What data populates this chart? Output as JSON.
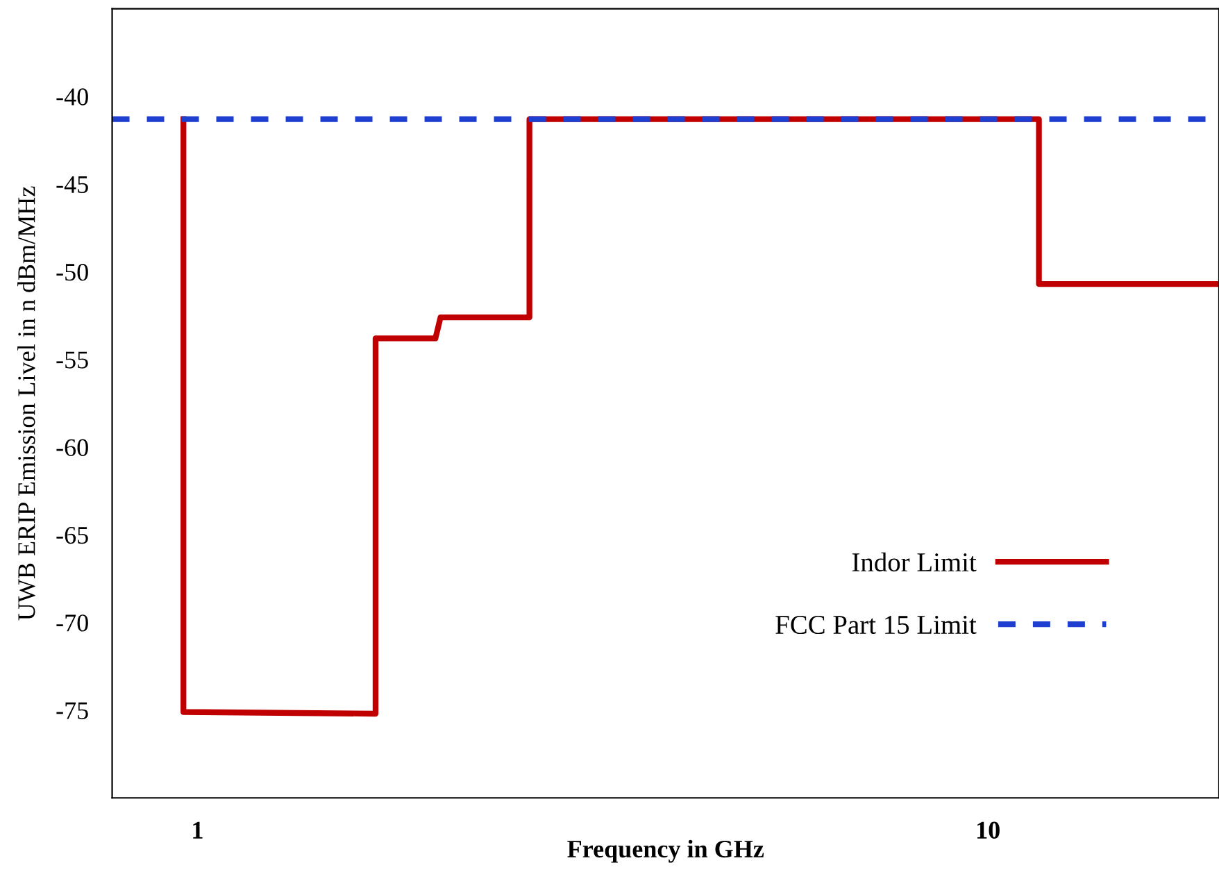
{
  "chart_data": {
    "type": "line",
    "xlabel": "Frequency in GHz",
    "ylabel": "UWB ERIP Emission Livel in n dBm/MHz",
    "log": "x",
    "xlim": [
      0.78,
      19.6
    ],
    "xticks": [
      1,
      10
    ],
    "ylim": [
      -80,
      -35
    ],
    "yticks": [
      -40,
      -45,
      -50,
      -55,
      -60,
      -65,
      -70,
      -75
    ],
    "grid": false,
    "legend": "bottom right",
    "marker": "none",
    "series": [
      {
        "name": "Indor Limit",
        "color": "#c00000",
        "line_style": "solid",
        "x": [
          0.96,
          0.96,
          1.68,
          1.68,
          2.0,
          2.03,
          2.63,
          2.63,
          11.6,
          11.6,
          19.6
        ],
        "values": [
          -41.3,
          -75.1,
          -75.2,
          -53.8,
          -53.8,
          -52.6,
          -52.6,
          -41.3,
          -41.3,
          -50.7,
          -50.7
        ]
      },
      {
        "name": "FCC Part 15 Limit",
        "color": "#1f3fd0",
        "line_style": "dashed",
        "x": [
          0.78,
          19.6
        ],
        "values": [
          -41.3,
          -41.3
        ]
      }
    ]
  }
}
